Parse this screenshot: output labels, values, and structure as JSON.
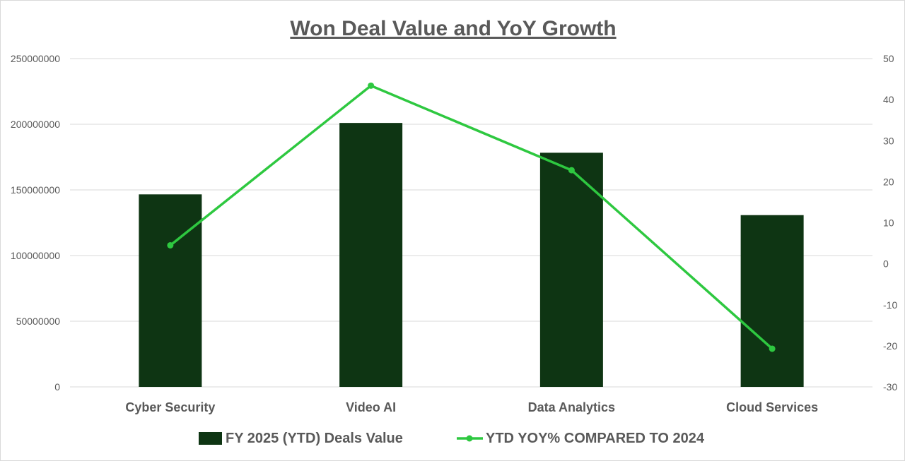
{
  "chart_data": {
    "type": "bar+line",
    "title": "Won Deal Value and YoY Growth",
    "categories": [
      "Cyber Security",
      "Video AI",
      "Data Analytics",
      "Cloud Services"
    ],
    "series": [
      {
        "name": "FY 2025 (YTD) Deals Value",
        "type": "bar",
        "axis": "left",
        "color": "#0e3513",
        "values": [
          146600000,
          201000000,
          178300000,
          130800000
        ]
      },
      {
        "name": "YTD YOY% COMPARED TO 2024",
        "type": "line",
        "axis": "right",
        "color": "#2ec840",
        "values": [
          4.5,
          43.4,
          22.8,
          -20.7
        ]
      }
    ],
    "y_left": {
      "lim": [
        0,
        250000000
      ],
      "ticks": [
        "0",
        "50000000",
        "100000000",
        "150000000",
        "200000000",
        "250000000"
      ]
    },
    "y_right": {
      "lim": [
        -30,
        50
      ],
      "ticks": [
        "-30",
        "-20",
        "-10",
        "0",
        "10",
        "20",
        "30",
        "40",
        "50"
      ]
    },
    "grid": true,
    "legend": "bottom"
  }
}
